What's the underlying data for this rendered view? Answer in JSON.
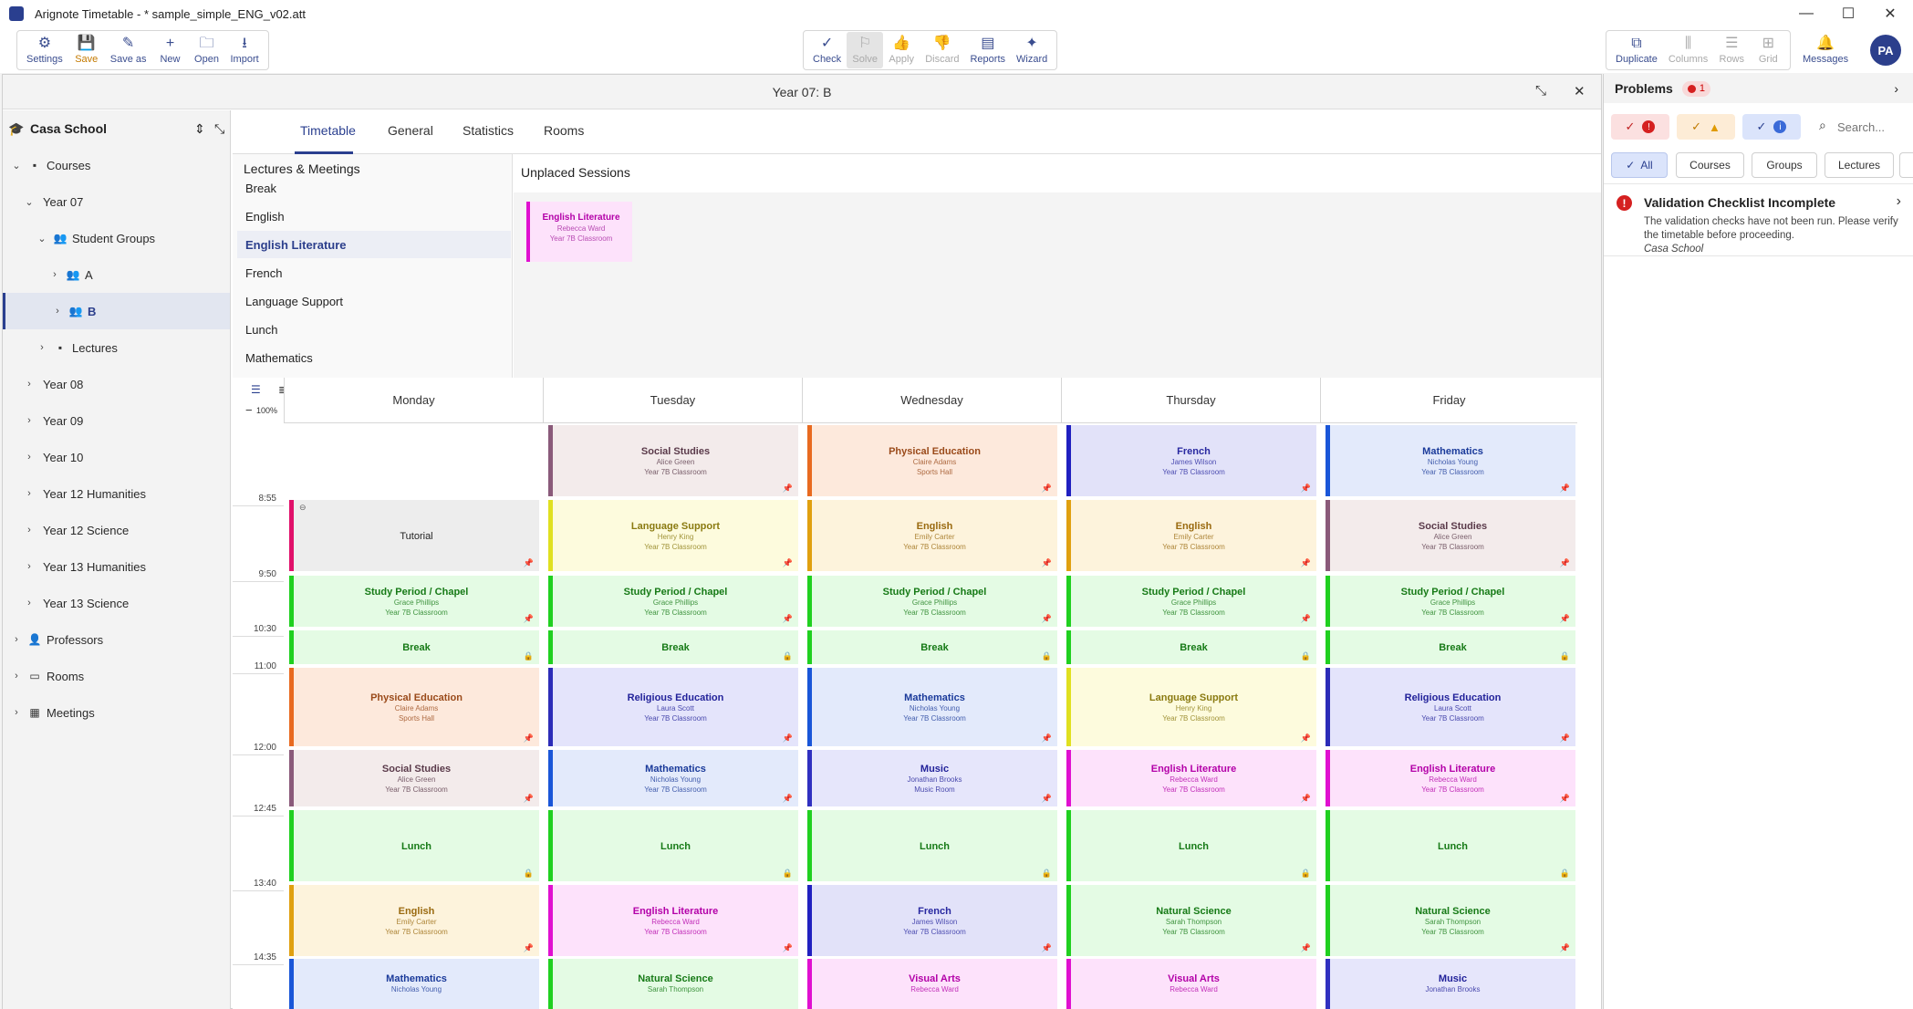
{
  "window": {
    "title": "Arignote Timetable - * sample_simple_ENG_v02.att",
    "minimize": "—",
    "maximize": "☐",
    "close": "✕"
  },
  "toolbar": {
    "file": [
      {
        "label": "Settings",
        "icon": "⚙",
        "icon_name": "gear-icon"
      },
      {
        "label": "Save",
        "icon": "💾",
        "icon_name": "save-icon"
      },
      {
        "label": "Save as",
        "icon": "✎",
        "icon_name": "save-as-icon"
      },
      {
        "label": "New",
        "icon": "+",
        "icon_name": "plus-icon"
      },
      {
        "label": "Open",
        "icon": "🗀",
        "icon_name": "folder-icon"
      },
      {
        "label": "Import",
        "icon": "⭳",
        "icon_name": "import-icon"
      }
    ],
    "solver": [
      {
        "label": "Check",
        "icon": "✓",
        "icon_name": "check-icon"
      },
      {
        "label": "Solve",
        "icon": "⚐",
        "icon_name": "solve-icon"
      },
      {
        "label": "Apply",
        "icon": "👍",
        "icon_name": "thumbs-up-icon"
      },
      {
        "label": "Discard",
        "icon": "👎",
        "icon_name": "thumbs-down-icon"
      },
      {
        "label": "Reports",
        "icon": "▤",
        "icon_name": "report-icon"
      },
      {
        "label": "Wizard",
        "icon": "✦",
        "icon_name": "wizard-icon"
      }
    ],
    "view": [
      {
        "label": "Duplicate",
        "icon": "⧉",
        "icon_name": "duplicate-icon"
      },
      {
        "label": "Columns",
        "icon": "⫼",
        "icon_name": "columns-icon"
      },
      {
        "label": "Rows",
        "icon": "☰",
        "icon_name": "rows-icon"
      },
      {
        "label": "Grid",
        "icon": "⊞",
        "icon_name": "grid-icon"
      }
    ],
    "messages": {
      "label": "Messages",
      "icon": "🔔"
    },
    "avatar": "PA"
  },
  "panel": {
    "title": "Year 07: B",
    "collapse": "⤡",
    "close": "✕"
  },
  "sidebar": {
    "school": "Casa School",
    "items": [
      {
        "label": "Courses",
        "level": 0,
        "chev": "⌄",
        "icon": "▪"
      },
      {
        "label": "Year 07",
        "level": 1,
        "chev": "⌄",
        "icon": ""
      },
      {
        "label": "Student Groups",
        "level": 2,
        "chev": "⌄",
        "icon": "👥"
      },
      {
        "label": "A",
        "level": 3,
        "chev": "›",
        "icon": "👥"
      },
      {
        "label": "B",
        "level": 3,
        "chev": "›",
        "icon": "👥"
      },
      {
        "label": "Lectures",
        "level": 2,
        "chev": "›",
        "icon": "▪"
      },
      {
        "label": "Year 08",
        "level": 1,
        "chev": "›",
        "icon": ""
      },
      {
        "label": "Year 09",
        "level": 1,
        "chev": "›",
        "icon": ""
      },
      {
        "label": "Year 10",
        "level": 1,
        "chev": "›",
        "icon": ""
      },
      {
        "label": "Year 12 Humanities",
        "level": 1,
        "chev": "›",
        "icon": ""
      },
      {
        "label": "Year 12 Science",
        "level": 1,
        "chev": "›",
        "icon": ""
      },
      {
        "label": "Year 13 Humanities",
        "level": 1,
        "chev": "›",
        "icon": ""
      },
      {
        "label": "Year 13 Science",
        "level": 1,
        "chev": "›",
        "icon": ""
      },
      {
        "label": "Professors",
        "level": 0,
        "chev": "›",
        "icon": "👤"
      },
      {
        "label": "Rooms",
        "level": 0,
        "chev": "›",
        "icon": "▭"
      },
      {
        "label": "Meetings",
        "level": 0,
        "chev": "›",
        "icon": "▦"
      }
    ]
  },
  "tabs": [
    "Timetable",
    "General",
    "Statistics",
    "Rooms"
  ],
  "lectures": {
    "title": "Lectures & Meetings",
    "items": [
      "Break",
      "English",
      "English Literature",
      "French",
      "Language Support",
      "Lunch",
      "Mathematics"
    ]
  },
  "unplaced": {
    "title": "Unplaced Sessions",
    "card": {
      "title": "English Literature",
      "teacher": "Rebecca Ward",
      "room": "Year 7B Classroom"
    }
  },
  "zoom": {
    "minus": "−",
    "value": "100%",
    "plus": "+"
  },
  "timetable": {
    "days": [
      "Monday",
      "Tuesday",
      "Wednesday",
      "Thursday",
      "Friday"
    ],
    "times": [
      "8:55",
      "9:50",
      "10:30",
      "11:00",
      "12:00",
      "12:45",
      "13:40",
      "14:35"
    ],
    "rows": [
      [
        null,
        {
          "title": "Social Studies",
          "teacher": "Alice Green",
          "room": "Year 7B Classroom",
          "color": "#f3ebeb",
          "bar": "#8a5a7a",
          "tc": "#5a3a4a",
          "pin": "📌"
        },
        {
          "title": "Physical Education",
          "teacher": "Claire Adams",
          "room": "Sports Hall",
          "color": "#fde9dc",
          "bar": "#e86a20",
          "tc": "#9a4a1a",
          "pin": "📌"
        },
        {
          "title": "French",
          "teacher": "James Wilson",
          "room": "Year 7B Classroom",
          "color": "#e2e2f9",
          "bar": "#2020c0",
          "tc": "#2828a0",
          "pin": "📌"
        },
        {
          "title": "Mathematics",
          "teacher": "Nicholas Young",
          "room": "Year 7B Classroom",
          "color": "#e3eafb",
          "bar": "#1a56d8",
          "tc": "#1a3a9a",
          "pin": "📌"
        }
      ],
      [
        {
          "title": "Tutorial",
          "teacher": "",
          "room": "",
          "color": "#ededed",
          "bar": "#e0106a",
          "tc": "#222222",
          "pin": "📌"
        },
        {
          "title": "Language Support",
          "teacher": "Henry King",
          "room": "Year 7B Classroom",
          "color": "#fdfbdd",
          "bar": "#e0e020",
          "tc": "#8a7a10",
          "pin": "📌"
        },
        {
          "title": "English",
          "teacher": "Emily Carter",
          "room": "Year 7B Classroom",
          "color": "#fdf3dc",
          "bar": "#e0a010",
          "tc": "#9a6a10",
          "pin": "📌"
        },
        {
          "title": "English",
          "teacher": "Emily Carter",
          "room": "Year 7B Classroom",
          "color": "#fdf3dc",
          "bar": "#e0a010",
          "tc": "#9a6a10",
          "pin": "📌"
        },
        {
          "title": "Social Studies",
          "teacher": "Alice Green",
          "room": "Year 7B Classroom",
          "color": "#f3ebeb",
          "bar": "#8a5a7a",
          "tc": "#5a3a4a",
          "pin": "📌"
        }
      ],
      [
        {
          "title": "Study Period / Chapel",
          "teacher": "Grace Phillips",
          "room": "Year 7B Classroom",
          "color": "#e4fbe4",
          "bar": "#20d020",
          "tc": "#167a16",
          "pin": "📌"
        },
        {
          "title": "Study Period / Chapel",
          "teacher": "Grace Phillips",
          "room": "Year 7B Classroom",
          "color": "#e4fbe4",
          "bar": "#20d020",
          "tc": "#167a16",
          "pin": "📌"
        },
        {
          "title": "Study Period / Chapel",
          "teacher": "Grace Phillips",
          "room": "Year 7B Classroom",
          "color": "#e4fbe4",
          "bar": "#20d020",
          "tc": "#167a16",
          "pin": "📌"
        },
        {
          "title": "Study Period / Chapel",
          "teacher": "Grace Phillips",
          "room": "Year 7B Classroom",
          "color": "#e4fbe4",
          "bar": "#20d020",
          "tc": "#167a16",
          "pin": "📌"
        },
        {
          "title": "Study Period / Chapel",
          "teacher": "Grace Phillips",
          "room": "Year 7B Classroom",
          "color": "#e4fbe4",
          "bar": "#20d020",
          "tc": "#167a16",
          "pin": "📌"
        }
      ],
      [
        {
          "title": "Break",
          "teacher": "",
          "room": "",
          "color": "#e4fbe4",
          "bar": "#20d020",
          "tc": "#167a16",
          "pin": "🔒"
        },
        {
          "title": "Break",
          "teacher": "",
          "room": "",
          "color": "#e4fbe4",
          "bar": "#20d020",
          "tc": "#167a16",
          "pin": "🔒"
        },
        {
          "title": "Break",
          "teacher": "",
          "room": "",
          "color": "#e4fbe4",
          "bar": "#20d020",
          "tc": "#167a16",
          "pin": "🔒"
        },
        {
          "title": "Break",
          "teacher": "",
          "room": "",
          "color": "#e4fbe4",
          "bar": "#20d020",
          "tc": "#167a16",
          "pin": "🔒"
        },
        {
          "title": "Break",
          "teacher": "",
          "room": "",
          "color": "#e4fbe4",
          "bar": "#20d020",
          "tc": "#167a16",
          "pin": "🔒"
        }
      ],
      [
        {
          "title": "Physical Education",
          "teacher": "Claire Adams",
          "room": "Sports Hall",
          "color": "#fde9dc",
          "bar": "#e86a20",
          "tc": "#9a4a1a",
          "pin": "📌"
        },
        {
          "title": "Religious Education",
          "teacher": "Laura Scott",
          "room": "Year 7B Classroom",
          "color": "#e4e4fb",
          "bar": "#2c2cb8",
          "tc": "#22229a",
          "pin": "📌"
        },
        {
          "title": "Mathematics",
          "teacher": "Nicholas Young",
          "room": "Year 7B Classroom",
          "color": "#e3eafb",
          "bar": "#1a56d8",
          "tc": "#1a3a9a",
          "pin": "📌"
        },
        {
          "title": "Language Support",
          "teacher": "Henry King",
          "room": "Year 7B Classroom",
          "color": "#fdfbdd",
          "bar": "#e0e020",
          "tc": "#8a7a10",
          "pin": "📌"
        },
        {
          "title": "Religious Education",
          "teacher": "Laura Scott",
          "room": "Year 7B Classroom",
          "color": "#e4e4fb",
          "bar": "#2c2cb8",
          "tc": "#22229a",
          "pin": "📌"
        }
      ],
      [
        {
          "title": "Social Studies",
          "teacher": "Alice Green",
          "room": "Year 7B Classroom",
          "color": "#f3ebeb",
          "bar": "#8a5a7a",
          "tc": "#5a3a4a",
          "pin": "📌"
        },
        {
          "title": "Mathematics",
          "teacher": "Nicholas Young",
          "room": "Year 7B Classroom",
          "color": "#e3eafb",
          "bar": "#1a56d8",
          "tc": "#1a3a9a",
          "pin": "📌"
        },
        {
          "title": "Music",
          "teacher": "Jonathan Brooks",
          "room": "Music Room",
          "color": "#e6e6fb",
          "bar": "#3030c0",
          "tc": "#22229a",
          "pin": "📌"
        },
        {
          "title": "English Literature",
          "teacher": "Rebecca Ward",
          "room": "Year 7B Classroom",
          "color": "#fde2fb",
          "bar": "#e010d0",
          "tc": "#b300a8",
          "pin": "📌"
        },
        {
          "title": "English Literature",
          "teacher": "Rebecca Ward",
          "room": "Year 7B Classroom",
          "color": "#fde2fb",
          "bar": "#e010d0",
          "tc": "#b300a8",
          "pin": "📌"
        }
      ],
      [
        {
          "title": "Lunch",
          "teacher": "",
          "room": "",
          "color": "#e4fbe4",
          "bar": "#20d020",
          "tc": "#167a16",
          "pin": "🔒"
        },
        {
          "title": "Lunch",
          "teacher": "",
          "room": "",
          "color": "#e4fbe4",
          "bar": "#20d020",
          "tc": "#167a16",
          "pin": "🔒"
        },
        {
          "title": "Lunch",
          "teacher": "",
          "room": "",
          "color": "#e4fbe4",
          "bar": "#20d020",
          "tc": "#167a16",
          "pin": "🔒"
        },
        {
          "title": "Lunch",
          "teacher": "",
          "room": "",
          "color": "#e4fbe4",
          "bar": "#20d020",
          "tc": "#167a16",
          "pin": "🔒"
        },
        {
          "title": "Lunch",
          "teacher": "",
          "room": "",
          "color": "#e4fbe4",
          "bar": "#20d020",
          "tc": "#167a16",
          "pin": "🔒"
        }
      ],
      [
        {
          "title": "English",
          "teacher": "Emily Carter",
          "room": "Year 7B Classroom",
          "color": "#fdf3dc",
          "bar": "#e0a010",
          "tc": "#9a6a10",
          "pin": "📌"
        },
        {
          "title": "English Literature",
          "teacher": "Rebecca Ward",
          "room": "Year 7B Classroom",
          "color": "#fde2fb",
          "bar": "#e010d0",
          "tc": "#b300a8",
          "pin": "📌"
        },
        {
          "title": "French",
          "teacher": "James Wilson",
          "room": "Year 7B Classroom",
          "color": "#e2e2f9",
          "bar": "#2020c0",
          "tc": "#2828a0",
          "pin": "📌"
        },
        {
          "title": "Natural Science",
          "teacher": "Sarah Thompson",
          "room": "Year 7B Classroom",
          "color": "#e4fbe4",
          "bar": "#20d020",
          "tc": "#167a16",
          "pin": "📌"
        },
        {
          "title": "Natural Science",
          "teacher": "Sarah Thompson",
          "room": "Year 7B Classroom",
          "color": "#e4fbe4",
          "bar": "#20d020",
          "tc": "#167a16",
          "pin": "📌"
        }
      ],
      [
        {
          "title": "Mathematics",
          "teacher": "Nicholas Young",
          "room": "",
          "color": "#e3eafb",
          "bar": "#1a56d8",
          "tc": "#1a3a9a",
          "pin": ""
        },
        {
          "title": "Natural Science",
          "teacher": "Sarah Thompson",
          "room": "",
          "color": "#e4fbe4",
          "bar": "#20d020",
          "tc": "#167a16",
          "pin": ""
        },
        {
          "title": "Visual Arts",
          "teacher": "Rebecca Ward",
          "room": "",
          "color": "#fde2fb",
          "bar": "#e010d0",
          "tc": "#b300a8",
          "pin": ""
        },
        {
          "title": "Visual Arts",
          "teacher": "Rebecca Ward",
          "room": "",
          "color": "#fde2fb",
          "bar": "#e010d0",
          "tc": "#b300a8",
          "pin": ""
        },
        {
          "title": "Music",
          "teacher": "Jonathan Brooks",
          "room": "",
          "color": "#e6e6fb",
          "bar": "#3030c0",
          "tc": "#22229a",
          "pin": ""
        }
      ]
    ]
  },
  "problems": {
    "title": "Problems",
    "count": "1",
    "search_placeholder": "Search...",
    "chips": [
      "All",
      "Courses",
      "Groups",
      "Lectures"
    ],
    "item": {
      "title": "Validation Checklist Incomplete",
      "desc": "The validation checks have not been run. Please verify the timetable before proceeding.",
      "school": "Casa School"
    }
  }
}
